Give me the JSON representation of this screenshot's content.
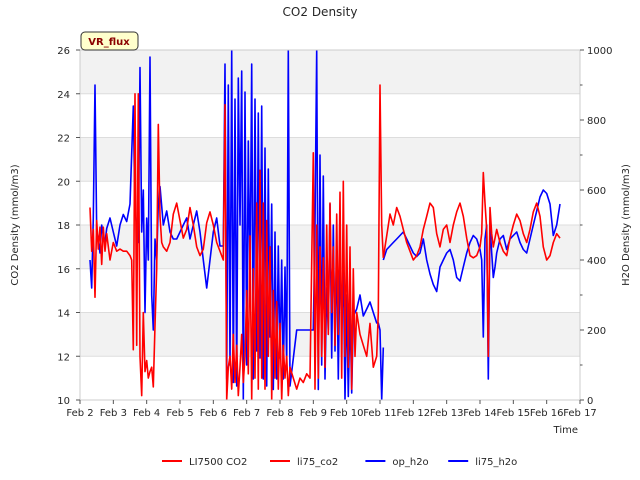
{
  "chart_data": {
    "type": "line",
    "title": "CO2 Density",
    "xlabel": "Time",
    "ylabel": "CO2 Density (mmol/m3)",
    "y2label": "H2O Density (mmol/m3)",
    "badge": "VR_flux",
    "xlim": [
      2,
      17
    ],
    "ylim": [
      10,
      26
    ],
    "y2lim": [
      0,
      1000
    ],
    "x_ticks": [
      2,
      3,
      4,
      5,
      6,
      7,
      8,
      9,
      10,
      11,
      12,
      13,
      14,
      15,
      16,
      17
    ],
    "x_tick_labels": [
      "Feb 2",
      "Feb 3",
      "Feb 4",
      "Feb 5",
      "Feb 6",
      "Feb 7",
      "Feb 8",
      "Feb 9",
      "Feb 10",
      "Feb 11",
      "Feb 12",
      "Feb 13",
      "Feb 14",
      "Feb 15",
      "Feb 16",
      "Feb 17"
    ],
    "y_ticks": [
      10,
      12,
      14,
      16,
      18,
      20,
      22,
      24,
      26
    ],
    "y_tick_labels": [
      "10",
      "12",
      "14",
      "16",
      "18",
      "20",
      "22",
      "24",
      "26"
    ],
    "y2_ticks": [
      0,
      200,
      400,
      600,
      800,
      1000
    ],
    "y2_tick_labels": [
      "0",
      "200",
      "400",
      "600",
      "800",
      "1000"
    ],
    "legend": [
      {
        "label": "LI7500 CO2",
        "color": "#ff0000"
      },
      {
        "label": "li75_co2",
        "color": "#ff0000"
      },
      {
        "label": "op_h2o",
        "color": "#0000ff"
      },
      {
        "label": "li75_h2o",
        "color": "#0000ff"
      }
    ],
    "series": [
      {
        "name": "op_h2o",
        "axis": "right",
        "color": "#0000ff",
        "x": [
          2.3,
          2.35,
          2.4,
          2.45,
          2.5,
          2.55,
          2.6,
          2.65,
          2.7,
          2.75,
          2.8,
          2.9,
          3.0,
          3.1,
          3.2,
          3.3,
          3.4,
          3.5,
          3.6,
          3.65,
          3.7,
          3.75,
          3.8,
          3.85,
          3.9,
          3.95,
          4.0,
          4.05,
          4.1,
          4.15,
          4.2,
          4.25,
          4.3,
          4.35,
          4.4,
          4.5,
          4.6,
          4.7,
          4.8,
          4.9,
          5.0,
          5.1,
          5.2,
          5.3,
          5.4,
          5.5,
          5.6,
          5.7,
          5.8,
          5.9,
          6.0,
          6.1,
          6.2,
          6.3,
          6.35,
          6.4,
          6.45,
          6.5,
          6.55,
          6.6,
          6.65,
          6.7,
          6.75,
          6.8,
          6.85,
          6.9,
          6.95,
          7.0,
          7.05,
          7.1,
          7.15,
          7.2,
          7.25,
          7.3,
          7.35,
          7.4,
          7.45,
          7.5,
          7.55,
          7.6,
          7.65,
          7.7,
          7.75,
          7.8,
          7.85,
          7.9,
          7.95,
          8.0,
          8.05,
          8.1,
          8.15,
          8.2,
          8.25,
          8.3,
          8.5,
          9.0,
          9.05,
          9.1,
          9.15,
          9.2,
          9.25,
          9.3,
          9.35,
          9.4,
          9.45,
          9.5,
          9.55,
          9.6,
          9.65,
          9.7,
          9.75,
          9.8,
          9.85,
          9.9,
          9.95,
          10.0,
          10.05,
          10.1,
          10.15,
          10.2,
          10.3,
          10.4,
          10.5,
          10.6,
          10.7,
          10.8,
          10.9,
          10.95,
          11.0,
          11.05,
          11.1
        ],
        "y": [
          400,
          320,
          520,
          900,
          480,
          460,
          420,
          500,
          470,
          450,
          490,
          520,
          480,
          440,
          500,
          530,
          510,
          560,
          840,
          540,
          500,
          450,
          950,
          480,
          600,
          250,
          520,
          400,
          980,
          300,
          200,
          460,
          400,
          560,
          610,
          500,
          540,
          480,
          460,
          460,
          480,
          500,
          520,
          460,
          500,
          540,
          480,
          400,
          320,
          400,
          480,
          520,
          440,
          440,
          960,
          60,
          900,
          100,
          1000,
          50,
          860,
          40,
          920,
          500,
          940,
          0,
          880,
          100,
          740,
          320,
          960,
          60,
          860,
          140,
          820,
          120,
          840,
          60,
          720,
          40,
          660,
          180,
          560,
          30,
          480,
          60,
          440,
          120,
          400,
          60,
          380,
          100,
          1000,
          40,
          200,
          200,
          500,
          1000,
          30,
          700,
          100,
          640,
          60,
          320,
          200,
          560,
          120,
          500,
          140,
          440,
          60,
          420,
          200,
          400,
          0,
          300,
          10,
          260,
          20,
          240,
          260,
          300,
          240,
          260,
          280,
          250,
          220,
          220,
          200,
          0,
          150
        ]
      },
      {
        "name": "li75_h2o",
        "axis": "right",
        "color": "#0000ff",
        "x": [
          11.1,
          11.2,
          11.3,
          11.4,
          11.5,
          11.6,
          11.7,
          11.8,
          11.9,
          12.0,
          12.1,
          12.2,
          12.3,
          12.4,
          12.5,
          12.6,
          12.7,
          12.8,
          12.9,
          13.0,
          13.1,
          13.2,
          13.3,
          13.4,
          13.5,
          13.6,
          13.7,
          13.8,
          13.9,
          14.0,
          14.05,
          14.1,
          14.15,
          14.2,
          14.25,
          14.3,
          14.35,
          14.4,
          14.45,
          14.5,
          14.6,
          14.7,
          14.8,
          14.9,
          15.0,
          15.1,
          15.2,
          15.3,
          15.4,
          15.5,
          15.6,
          15.7,
          15.8,
          15.9,
          16.0,
          16.1,
          16.2,
          16.3,
          16.4
        ],
        "y": [
          400,
          430,
          440,
          450,
          460,
          470,
          480,
          460,
          440,
          420,
          410,
          420,
          460,
          400,
          360,
          330,
          310,
          380,
          400,
          420,
          430,
          400,
          350,
          340,
          380,
          420,
          450,
          470,
          460,
          430,
          400,
          180,
          460,
          500,
          60,
          500,
          420,
          350,
          380,
          420,
          460,
          470,
          430,
          460,
          470,
          480,
          450,
          430,
          420,
          460,
          500,
          540,
          580,
          600,
          590,
          560,
          470,
          500,
          560
        ]
      },
      {
        "name": "LI7500 CO2",
        "axis": "left",
        "color": "#ff0000",
        "x": [
          2.3,
          2.35,
          2.4,
          2.45,
          2.5,
          2.55,
          2.6,
          2.65,
          2.7,
          2.75,
          2.8,
          2.9,
          3.0,
          3.1,
          3.2,
          3.3,
          3.4,
          3.5,
          3.55,
          3.6,
          3.65,
          3.7,
          3.75,
          3.8,
          3.85,
          3.9,
          3.95,
          4.0,
          4.05,
          4.1,
          4.15,
          4.2,
          4.25,
          4.3,
          4.35,
          4.4,
          4.45,
          4.5,
          4.6,
          4.7,
          4.8,
          4.9,
          5.0,
          5.1,
          5.2,
          5.3,
          5.4,
          5.5,
          5.6,
          5.7,
          5.8,
          5.9,
          6.0,
          6.1,
          6.2,
          6.3,
          6.35,
          6.4,
          6.45,
          6.5,
          6.55,
          6.6,
          6.65,
          6.7,
          6.75,
          6.8,
          6.85,
          6.9,
          6.95,
          7.0,
          7.05,
          7.1,
          7.15,
          7.2,
          7.25,
          7.3,
          7.35,
          7.4,
          7.45,
          7.5,
          7.55,
          7.6,
          7.65,
          7.7,
          7.75,
          7.8,
          7.85,
          7.9,
          7.95,
          8.0,
          8.05,
          8.1,
          8.15,
          8.2,
          8.25,
          8.3,
          8.4,
          8.5,
          8.6,
          8.7,
          8.8,
          8.9,
          9.0,
          9.05,
          9.1,
          9.15,
          9.2,
          9.25,
          9.3,
          9.35,
          9.4,
          9.45,
          9.5,
          9.55,
          9.6,
          9.65,
          9.7,
          9.75,
          9.8,
          9.85,
          9.9,
          9.95,
          10.0,
          10.05,
          10.1,
          10.15,
          10.2,
          10.25,
          10.3,
          10.4,
          10.5,
          10.6,
          10.7,
          10.8,
          10.9,
          10.95,
          11.0,
          11.05,
          11.1
        ],
        "y": [
          18.8,
          16.8,
          17.8,
          14.7,
          18.2,
          16.9,
          17.9,
          16.2,
          17.9,
          16.8,
          17.6,
          16.4,
          17.2,
          16.8,
          16.9,
          16.8,
          16.8,
          16.6,
          16.4,
          12.3,
          24.0,
          12.5,
          24.0,
          12.0,
          10.2,
          14.0,
          11.3,
          11.8,
          11.0,
          11.3,
          11.5,
          10.6,
          13.4,
          16.0,
          22.6,
          18.4,
          17.2,
          17.0,
          16.8,
          17.2,
          18.5,
          19.0,
          18.2,
          17.4,
          17.8,
          18.8,
          18.0,
          17.0,
          16.6,
          16.9,
          18.1,
          18.6,
          18.0,
          17.2,
          16.8,
          16.4,
          23.5,
          10.0,
          11.5,
          12.0,
          10.5,
          13.0,
          10.8,
          12.5,
          10.2,
          11.5,
          13.0,
          10.8,
          12.0,
          15.0,
          11.2,
          17.5,
          10.0,
          16.0,
          11.0,
          19.0,
          10.5,
          20.5,
          11.0,
          19.0,
          10.5,
          18.2,
          12.0,
          17.0,
          10.0,
          15.0,
          11.0,
          14.5,
          10.5,
          13.5,
          10.0,
          12.5,
          11.0,
          12.0,
          10.2,
          11.5,
          11.0,
          10.5,
          11.0,
          10.8,
          11.2,
          11.0,
          21.3,
          10.5,
          18.0,
          11.0,
          17.0,
          12.0,
          16.5,
          11.5,
          18.0,
          13.0,
          19.0,
          14.0,
          17.0,
          12.5,
          18.5,
          13.0,
          19.5,
          11.0,
          20.0,
          12.0,
          18.0,
          11.5,
          17.0,
          10.5,
          16.0,
          12.0,
          14.0,
          13.0,
          12.5,
          12.0,
          13.5,
          11.5,
          12.0,
          14.0,
          24.4,
          18.0,
          16.5
        ]
      },
      {
        "name": "li75_co2",
        "axis": "left",
        "color": "#ff0000",
        "x": [
          11.1,
          11.2,
          11.3,
          11.4,
          11.5,
          11.6,
          11.7,
          11.8,
          11.9,
          12.0,
          12.1,
          12.2,
          12.3,
          12.4,
          12.5,
          12.6,
          12.7,
          12.8,
          12.9,
          13.0,
          13.1,
          13.2,
          13.3,
          13.4,
          13.5,
          13.6,
          13.7,
          13.8,
          13.9,
          14.0,
          14.05,
          14.1,
          14.15,
          14.2,
          14.25,
          14.3,
          14.35,
          14.4,
          14.45,
          14.5,
          14.6,
          14.7,
          14.8,
          14.9,
          15.0,
          15.1,
          15.2,
          15.3,
          15.4,
          15.5,
          15.6,
          15.7,
          15.8,
          15.9,
          16.0,
          16.1,
          16.2,
          16.3,
          16.4
        ],
        "y": [
          16.5,
          17.5,
          18.5,
          18.0,
          18.8,
          18.4,
          17.8,
          17.2,
          16.8,
          16.4,
          16.6,
          17.0,
          17.8,
          18.4,
          19.0,
          18.8,
          17.6,
          17.0,
          17.8,
          18.0,
          17.2,
          18.0,
          18.6,
          19.0,
          18.4,
          17.4,
          16.6,
          16.5,
          16.6,
          17.0,
          17.6,
          20.4,
          19.0,
          17.8,
          12.0,
          18.8,
          17.6,
          17.0,
          17.4,
          17.8,
          17.2,
          16.8,
          16.6,
          17.4,
          18.0,
          18.5,
          18.2,
          17.6,
          17.2,
          17.8,
          18.6,
          19.0,
          18.4,
          17.0,
          16.4,
          16.6,
          17.2,
          17.6,
          17.4
        ]
      }
    ]
  }
}
